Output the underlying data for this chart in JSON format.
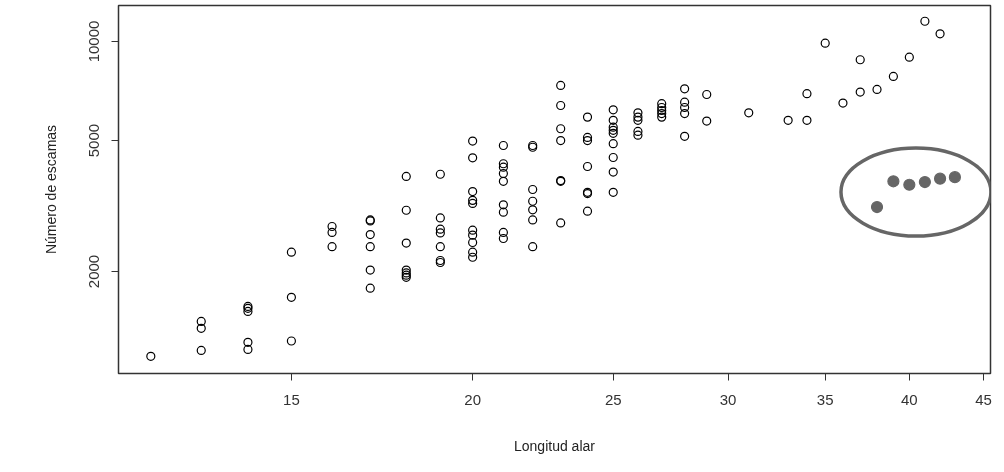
{
  "chart_data": {
    "type": "scatter",
    "xlabel": "Longitud alar",
    "ylabel": "Número de escamas",
    "log": "xy",
    "xlim": [
      11.4,
      45.5
    ],
    "ylim": [
      980,
      12860
    ],
    "xticks": [
      15,
      20,
      25,
      30,
      35,
      40,
      45
    ],
    "yticks": [
      2000,
      5000,
      10000
    ],
    "grid": false,
    "marker": "circle",
    "series": [
      {
        "color": "#000000",
        "x": [
          12,
          13,
          13,
          13,
          14,
          14,
          14,
          14,
          14,
          15,
          15,
          15,
          16,
          16,
          16,
          17,
          17,
          17,
          17,
          17,
          17,
          18,
          18,
          18,
          18,
          18,
          18,
          18,
          19,
          19,
          19,
          19,
          19,
          19,
          19,
          20,
          20,
          20,
          20,
          20,
          20,
          20,
          20,
          20,
          20,
          21,
          21,
          21,
          21,
          21,
          21,
          21,
          21,
          21,
          22,
          22,
          22,
          22,
          22,
          22,
          22,
          23,
          23,
          23,
          23,
          23,
          23,
          23,
          24,
          24,
          24,
          24,
          24,
          24,
          24,
          25,
          25,
          25,
          25,
          25,
          25,
          25,
          25,
          25,
          26,
          26,
          26,
          26,
          26,
          27,
          27,
          27,
          27,
          27,
          28,
          28,
          28,
          28,
          28,
          29,
          29,
          31,
          33,
          34,
          34,
          35,
          36,
          37,
          37,
          38,
          39,
          40,
          41,
          42
        ],
        "values": [
          1105,
          1411,
          1344,
          1152,
          1567,
          1546,
          1513,
          1219,
          1160,
          2290,
          1670,
          1230,
          2740,
          2630,
          2380,
          2870,
          2850,
          2590,
          2380,
          2020,
          1780,
          3890,
          3070,
          2440,
          2020,
          1980,
          1950,
          1920,
          3950,
          2910,
          2690,
          2620,
          2380,
          2160,
          2130,
          4980,
          4430,
          3500,
          3290,
          3220,
          2670,
          2580,
          2450,
          2290,
          2210,
          4830,
          4250,
          4150,
          3970,
          3760,
          3190,
          3030,
          2630,
          2520,
          4830,
          4770,
          3550,
          3270,
          3080,
          2870,
          2380,
          7350,
          6390,
          5430,
          5000,
          3780,
          3760,
          2810,
          5890,
          5110,
          5000,
          4170,
          3480,
          3450,
          3050,
          6200,
          5760,
          5490,
          5370,
          5260,
          4890,
          4440,
          4010,
          3480,
          6070,
          5890,
          5760,
          5330,
          5190,
          6470,
          6300,
          6170,
          6040,
          5890,
          7180,
          6540,
          6300,
          6040,
          5150,
          6900,
          5730,
          6070,
          5760,
          5760,
          6940,
          9880,
          6500,
          8800,
          7020,
          7150,
          7830,
          8960,
          11520,
          10550
        ]
      },
      {
        "color": "#666666",
        "x": [
          38,
          39,
          40,
          41,
          42,
          43
        ],
        "values": [
          3140,
          3760,
          3670,
          3740,
          3830,
          3870
        ]
      }
    ]
  }
}
